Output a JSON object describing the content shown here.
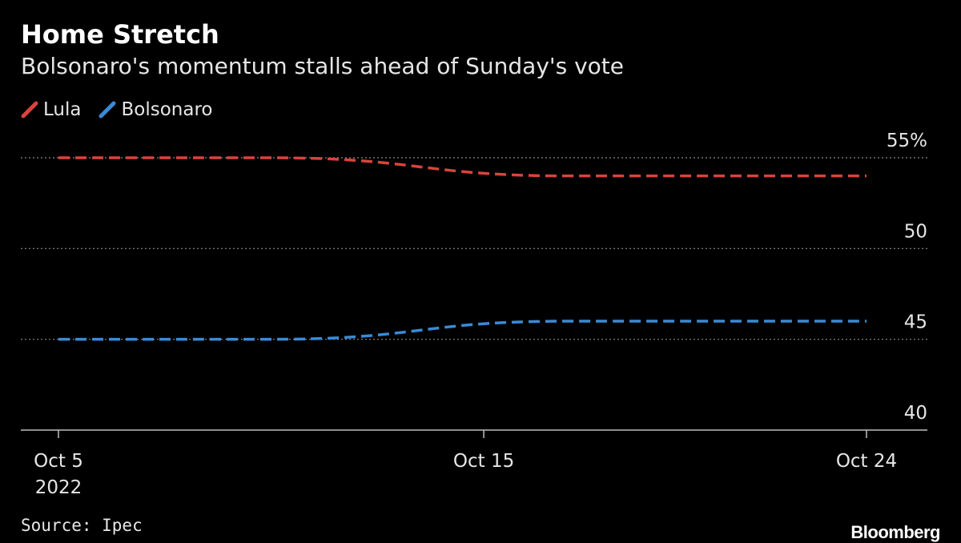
{
  "header": {
    "title": "Home Stretch",
    "subtitle": "Bolsonaro's momentum stalls ahead of Sunday's vote"
  },
  "footer": {
    "source": "Source: Ipec",
    "brand": "Bloomberg"
  },
  "chart_data": {
    "type": "line",
    "title": "Home Stretch",
    "subtitle": "Bolsonaro's momentum stalls ahead of Sunday's vote",
    "legend_placement": "top-left",
    "grid": true,
    "x_range": [
      "2022-10-05",
      "2022-10-24"
    ],
    "y_range": [
      40,
      56
    ],
    "y_ticks": [
      {
        "value": 55,
        "label": "55%"
      },
      {
        "value": 50,
        "label": "50"
      },
      {
        "value": 45,
        "label": "45"
      },
      {
        "value": 40,
        "label": "40"
      }
    ],
    "x_ticks": [
      {
        "date": "2022-10-05",
        "label": "Oct 5",
        "sublabel": "2022"
      },
      {
        "date": "2022-10-15",
        "label": "Oct 15",
        "sublabel": ""
      },
      {
        "date": "2022-10-24",
        "label": "Oct 24",
        "sublabel": ""
      }
    ],
    "series": [
      {
        "name": "Lula",
        "color": "#d9433c",
        "style": "dashed",
        "points": [
          {
            "date": "2022-10-05",
            "value": 55
          },
          {
            "date": "2022-10-10",
            "value": 55
          },
          {
            "date": "2022-10-17",
            "value": 54
          },
          {
            "date": "2022-10-24",
            "value": 54
          }
        ]
      },
      {
        "name": "Bolsonaro",
        "color": "#3a8ad6",
        "style": "dashed",
        "points": [
          {
            "date": "2022-10-05",
            "value": 45
          },
          {
            "date": "2022-10-10",
            "value": 45
          },
          {
            "date": "2022-10-17",
            "value": 46
          },
          {
            "date": "2022-10-24",
            "value": 46
          }
        ]
      }
    ]
  }
}
